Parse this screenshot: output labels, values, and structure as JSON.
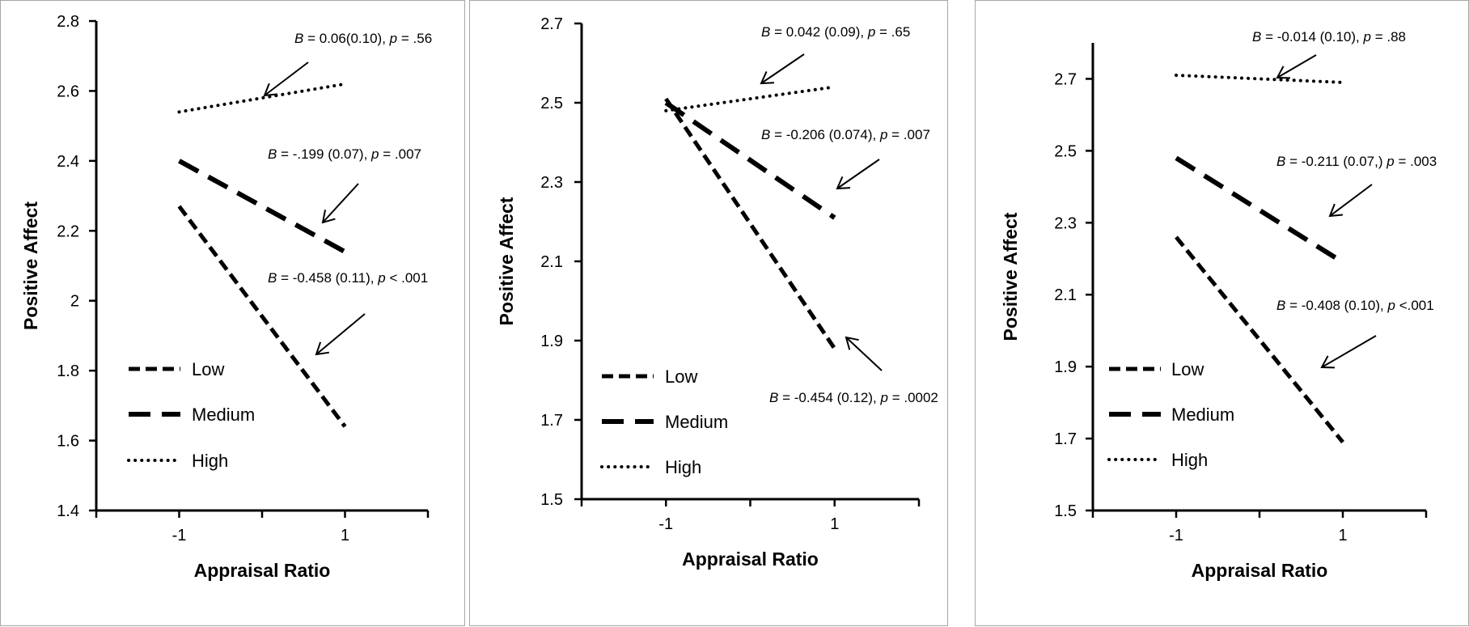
{
  "chart_data": [
    {
      "type": "line",
      "xlabel": "Appraisal Ratio",
      "ylabel": "Positive Affect",
      "ylim": [
        1.4,
        2.8
      ],
      "yticks": [
        "1.4",
        "1.6",
        "1.8",
        "2",
        "2.2",
        "2.4",
        "2.6",
        "2.8"
      ],
      "xlim": [
        -2,
        2
      ],
      "x": [
        -1,
        1
      ],
      "xticklabels": [
        "-1",
        "1"
      ],
      "grid": false,
      "legend_position": "lower-left",
      "series": [
        {
          "name": "Low",
          "style": "short-dash",
          "values": [
            2.27,
            1.64
          ]
        },
        {
          "name": "Medium",
          "style": "long-dash",
          "values": [
            2.4,
            2.14
          ]
        },
        {
          "name": "High",
          "style": "dotted",
          "values": [
            2.54,
            2.62
          ]
        }
      ],
      "annotations": [
        {
          "B": "0.06(0.10)",
          "p": ".56",
          "sep": ", "
        },
        {
          "B": "-.199 (0.07)",
          "p": ".007",
          "sep": ", "
        },
        {
          "B": "-0.458 (0.11)",
          "p": "< .001",
          "sep": ", "
        }
      ]
    },
    {
      "type": "line",
      "xlabel": "Appraisal Ratio",
      "ylabel": "Positive Affect",
      "ylim": [
        1.5,
        2.7
      ],
      "yticks": [
        "1.5",
        "1.7",
        "1.9",
        "2.1",
        "2.3",
        "2.5",
        "2.7"
      ],
      "xlim": [
        -2,
        2
      ],
      "x": [
        -1,
        1
      ],
      "xticklabels": [
        "-1",
        "1"
      ],
      "grid": false,
      "legend_position": "lower-left",
      "series": [
        {
          "name": "Low",
          "style": "short-dash",
          "values": [
            2.51,
            1.88
          ]
        },
        {
          "name": "Medium",
          "style": "long-dash",
          "values": [
            2.5,
            2.21
          ]
        },
        {
          "name": "High",
          "style": "dotted",
          "values": [
            2.48,
            2.54
          ]
        }
      ],
      "annotations": [
        {
          "B": "0.042 (0.09)",
          "p": ".65",
          "sep": ", "
        },
        {
          "B": "-0.206 (0.074)",
          "p": ".007",
          "sep": ", "
        },
        {
          "B": "-0.454 (0.12)",
          "p": ".0002",
          "sep": ", "
        }
      ]
    },
    {
      "type": "line",
      "xlabel": "Appraisal Ratio",
      "ylabel": "Positive Affect",
      "ylim": [
        1.5,
        2.8
      ],
      "yticks": [
        "1.5",
        "1.7",
        "1.9",
        "2.1",
        "2.3",
        "2.5",
        "2.7"
      ],
      "xlim": [
        -2,
        2
      ],
      "x": [
        -1,
        1
      ],
      "xticklabels": [
        "-1",
        "1"
      ],
      "grid": false,
      "legend_position": "lower-left",
      "series": [
        {
          "name": "Low",
          "style": "short-dash",
          "values": [
            2.26,
            1.69
          ]
        },
        {
          "name": "Medium",
          "style": "long-dash",
          "values": [
            2.48,
            2.19
          ]
        },
        {
          "name": "High",
          "style": "dotted",
          "values": [
            2.71,
            2.69
          ]
        }
      ],
      "annotations": [
        {
          "B": "-0.014 (0.10)",
          "p": ".88",
          "sep": ", "
        },
        {
          "B": "-0.211 (0.07,)",
          "p": ".003",
          "sep": " "
        },
        {
          "B": "-0.408 (0.10)",
          "p": "<.001",
          "sep": ", "
        }
      ]
    }
  ]
}
